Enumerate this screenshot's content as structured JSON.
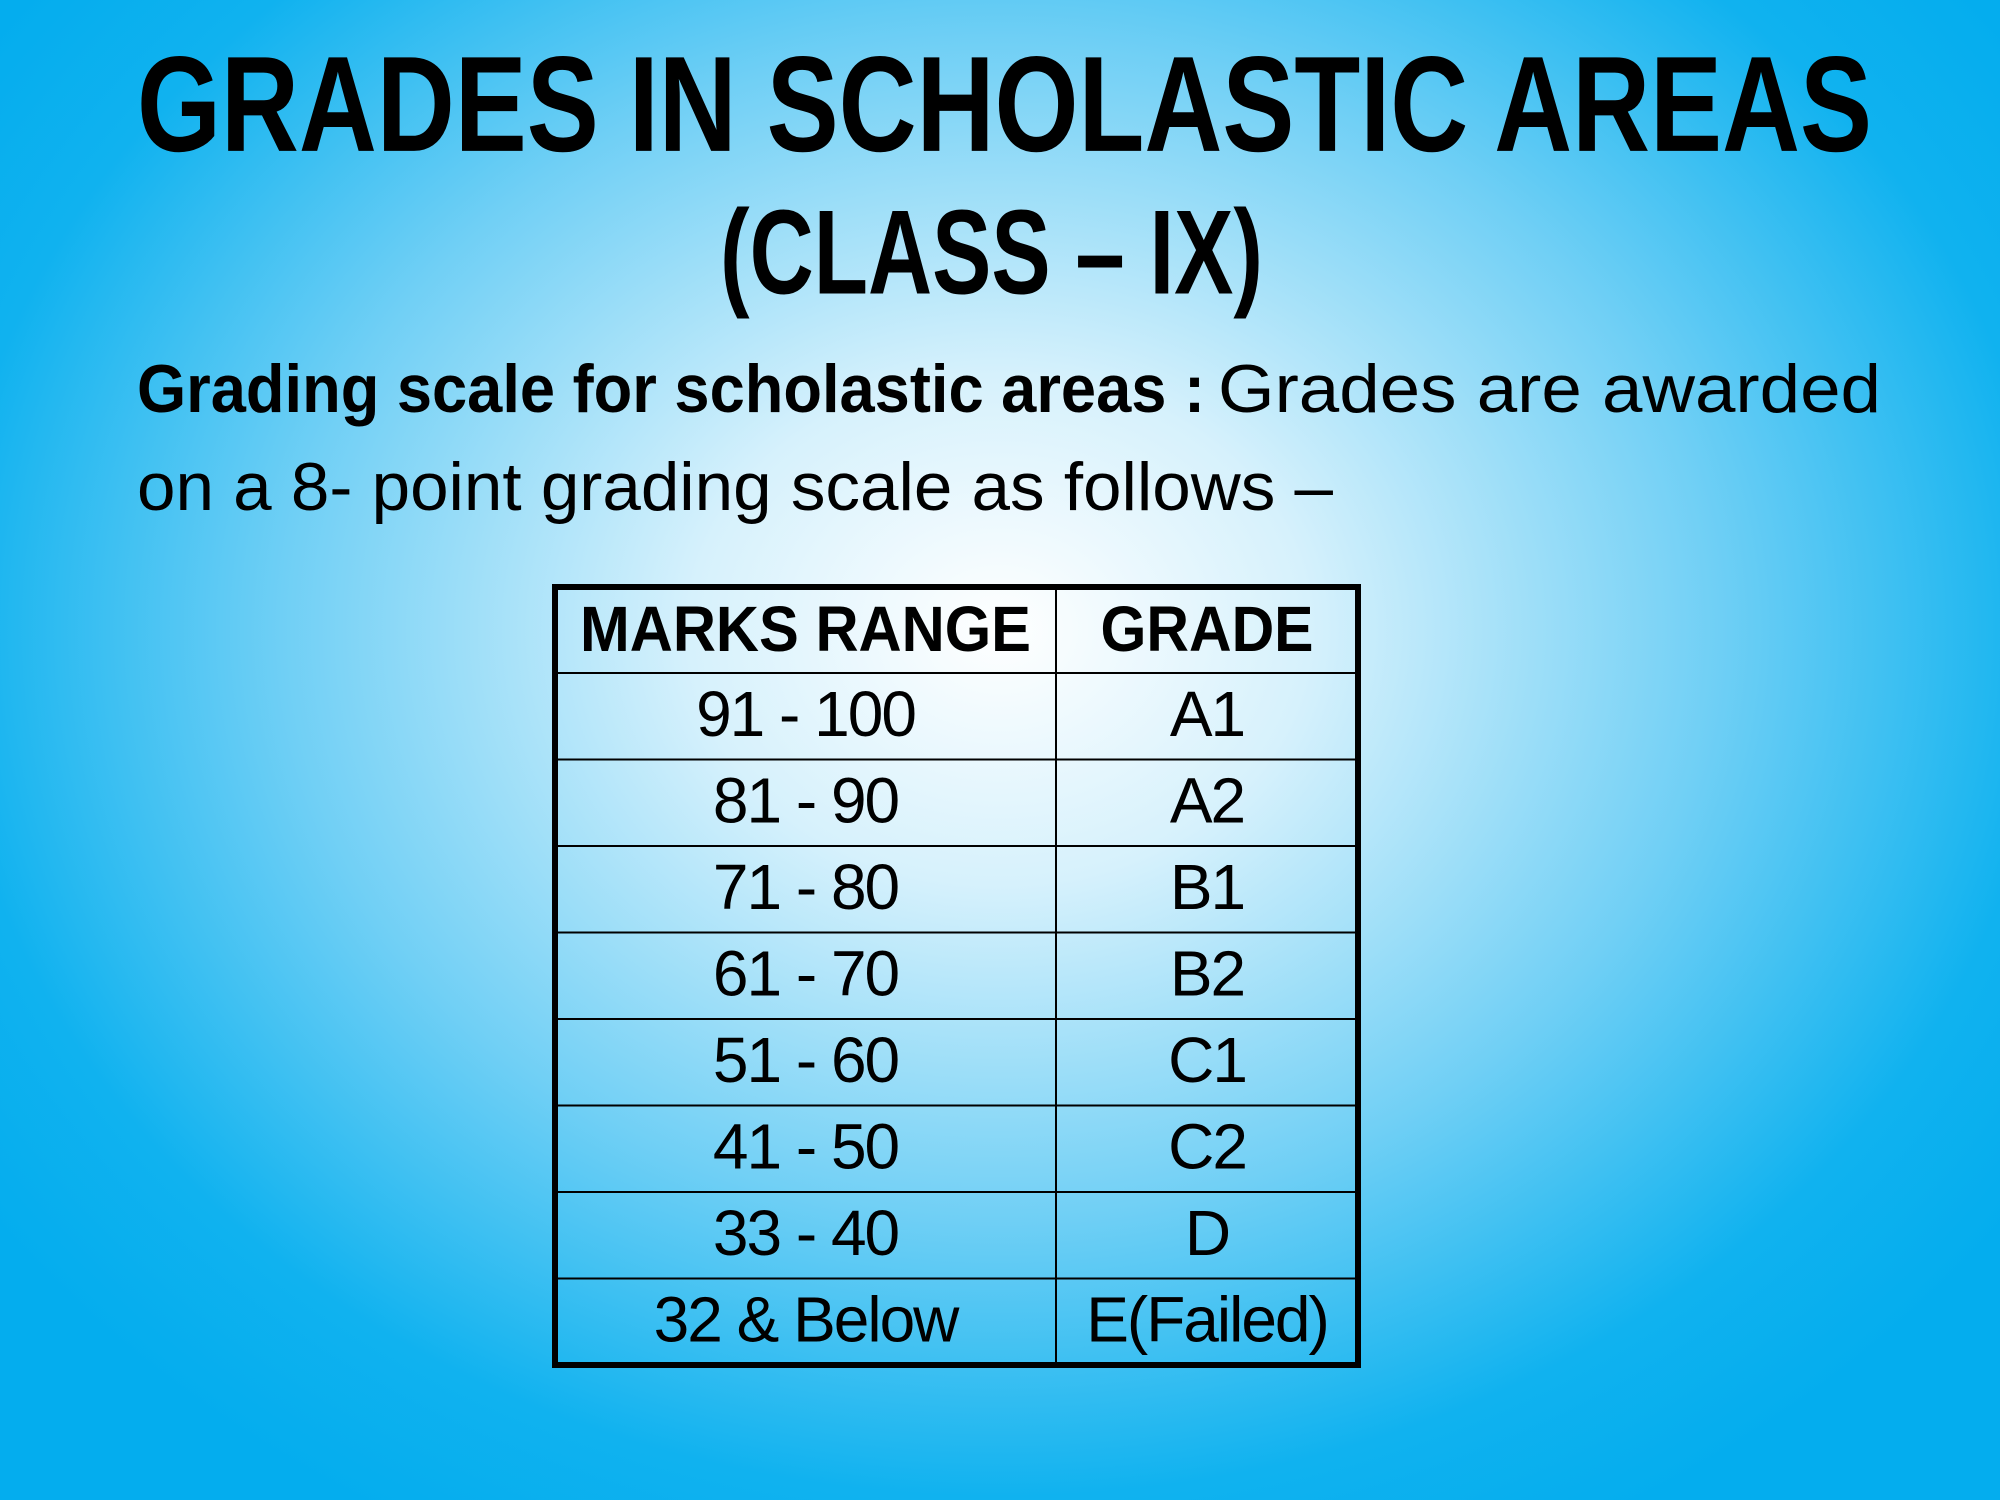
{
  "title": {
    "line1": "GRADES IN SCHOLASTIC AREAS",
    "line2": "(CLASS – IX)"
  },
  "intro": {
    "lead": "Grading scale for scholastic areas :",
    "lines": [
      "Grades are awarded",
      "on a 8- point grading scale as follows –"
    ]
  },
  "table": {
    "header": [
      "MARKS RANGE",
      "GRADE"
    ],
    "rows": [
      [
        "91 - 100",
        "A1"
      ],
      [
        "81 - 90",
        "A2"
      ],
      [
        "71 - 80",
        "B1"
      ],
      [
        "61 - 70",
        "B2"
      ],
      [
        "51 - 60",
        "C1"
      ],
      [
        "41 - 50",
        "C2"
      ],
      [
        "33 - 40",
        "D"
      ],
      [
        "32 & Below",
        "E(Failed)"
      ]
    ]
  }
}
